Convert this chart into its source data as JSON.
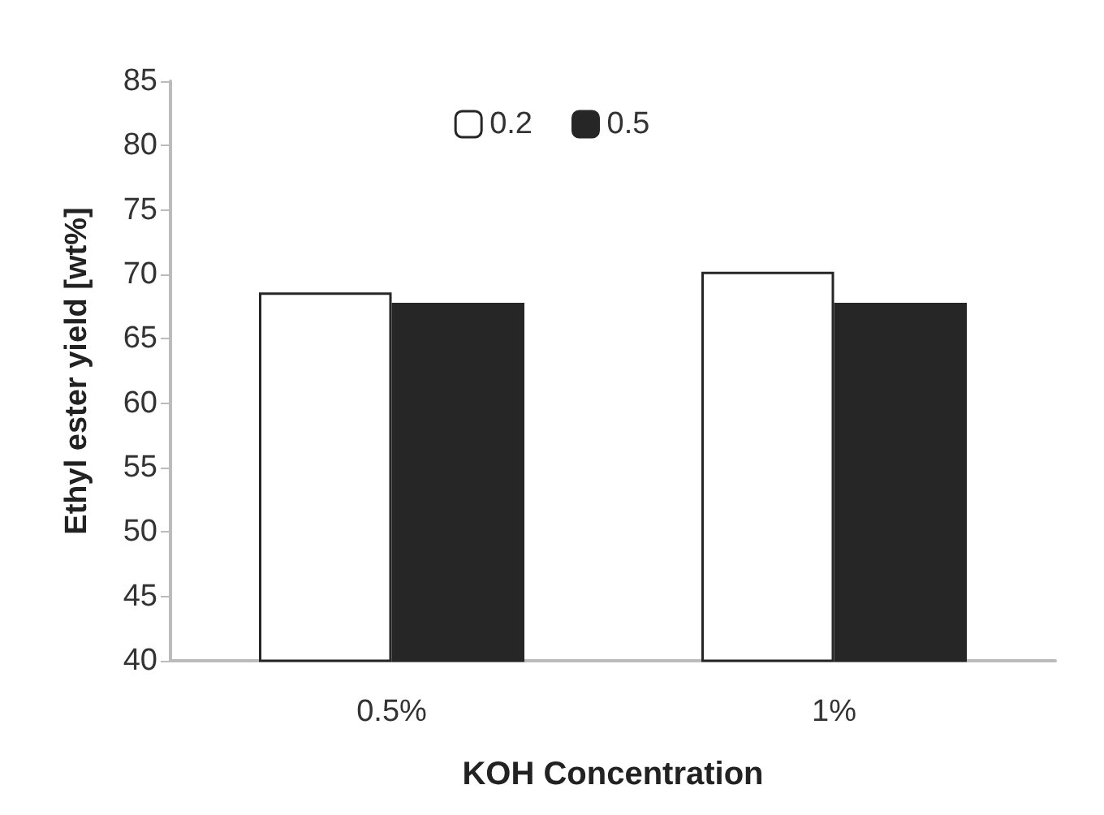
{
  "chart_data": {
    "type": "bar",
    "xlabel": "KOH Concentration",
    "ylabel": "Ethyl ester yield [wt%]",
    "categories": [
      "0.5%",
      "1%"
    ],
    "series": [
      {
        "name": "0.2",
        "color": "#ffffff",
        "values": [
          68.6,
          70.2
        ]
      },
      {
        "name": "0.5",
        "color": "#262626",
        "values": [
          67.8,
          67.8
        ]
      }
    ],
    "ylim": [
      40,
      85
    ],
    "yticks": [
      40,
      45,
      50,
      55,
      60,
      65,
      70,
      75,
      80,
      85
    ],
    "grid": false,
    "legend": "top"
  }
}
